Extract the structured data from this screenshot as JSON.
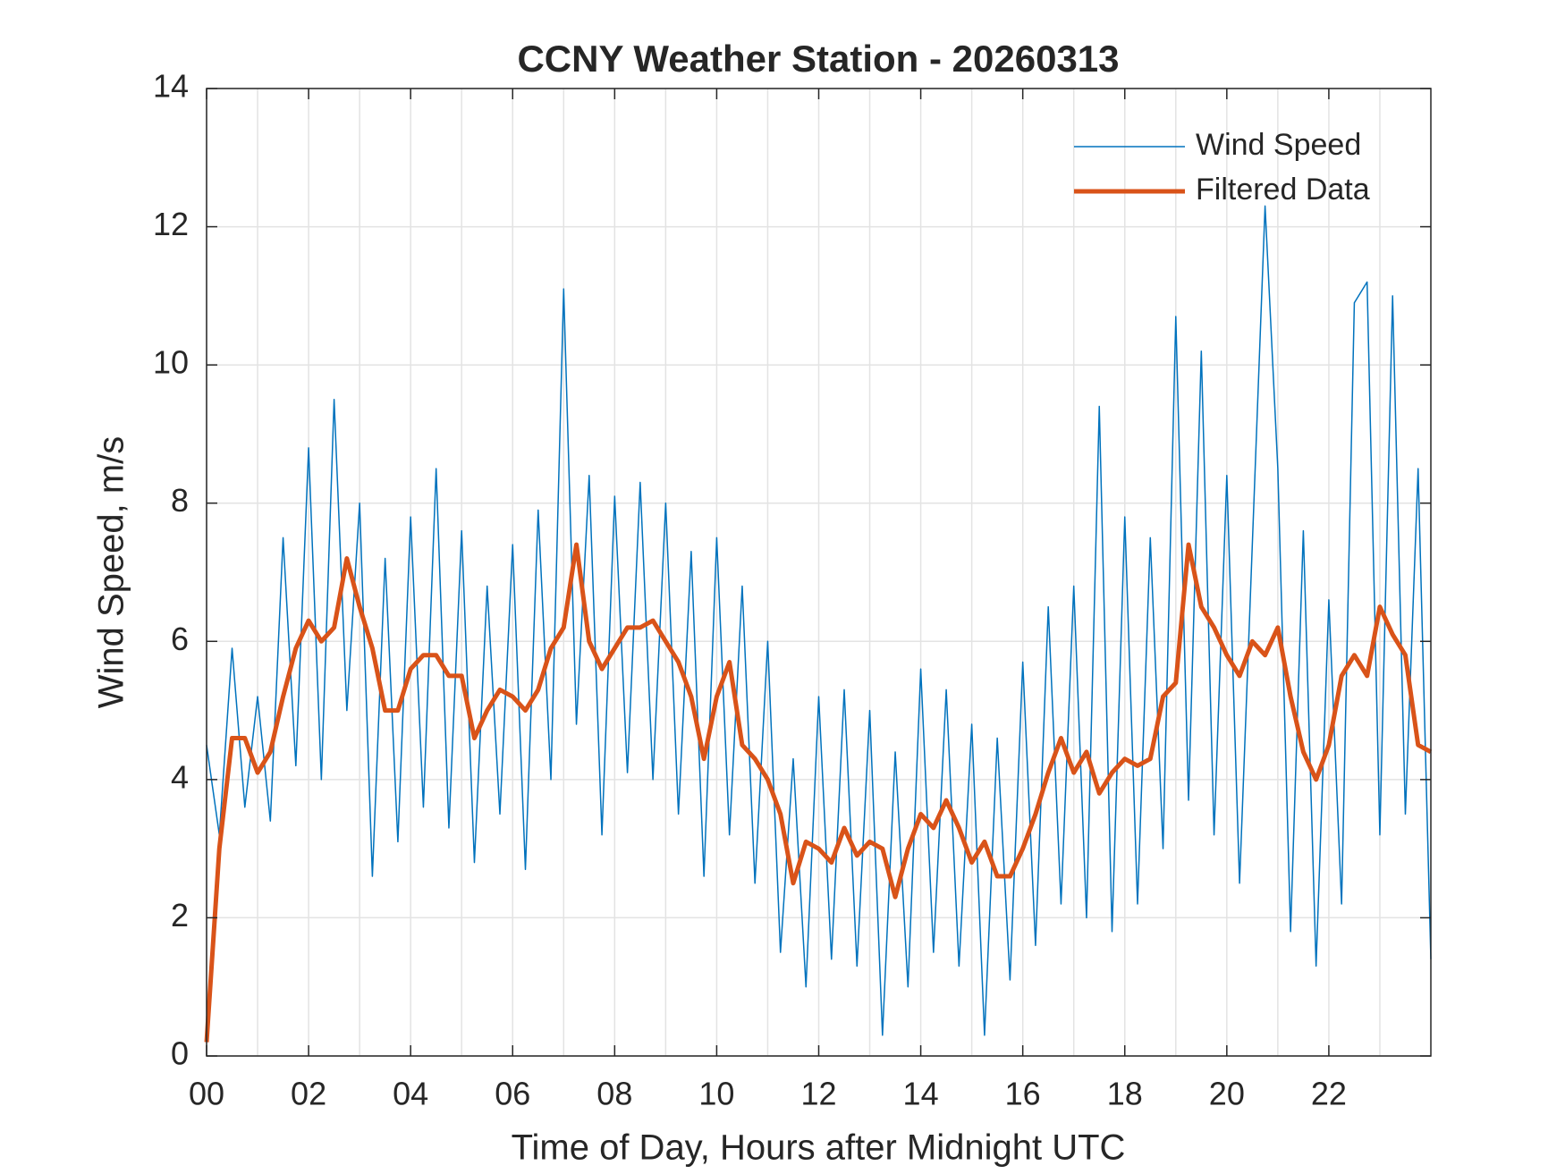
{
  "chart_data": {
    "type": "line",
    "title": "CCNY Weather Station - 20260313",
    "x_label": "Time of Day, Hours after Midnight UTC",
    "y_label": "Wind Speed, m/s",
    "x": [
      0,
      0.25,
      0.5,
      0.75,
      1,
      1.25,
      1.5,
      1.75,
      2,
      2.25,
      2.5,
      2.75,
      3,
      3.25,
      3.5,
      3.75,
      4,
      4.25,
      4.5,
      4.75,
      5,
      5.25,
      5.5,
      5.75,
      6,
      6.25,
      6.5,
      6.75,
      7,
      7.25,
      7.5,
      7.75,
      8,
      8.25,
      8.5,
      8.75,
      9,
      9.25,
      9.5,
      9.75,
      10,
      10.25,
      10.5,
      10.75,
      11,
      11.25,
      11.5,
      11.75,
      12,
      12.25,
      12.5,
      12.75,
      13,
      13.25,
      13.5,
      13.75,
      14,
      14.25,
      14.5,
      14.75,
      15,
      15.25,
      15.5,
      15.75,
      16,
      16.25,
      16.5,
      16.75,
      17,
      17.25,
      17.5,
      17.75,
      18,
      18.25,
      18.5,
      18.75,
      19,
      19.25,
      19.5,
      19.75,
      20,
      20.25,
      20.5,
      20.75,
      21,
      21.25,
      21.5,
      21.75,
      22,
      22.25,
      22.5,
      22.75,
      23,
      23.25,
      23.5,
      23.75,
      24
    ],
    "series": [
      {
        "name": "Wind Speed",
        "color": "#0072bd",
        "line_width": 1.5,
        "values": [
          4.5,
          3.2,
          5.9,
          3.6,
          5.2,
          3.4,
          7.5,
          4.2,
          8.8,
          4.0,
          9.5,
          5.0,
          8.0,
          2.6,
          7.2,
          3.1,
          7.8,
          3.6,
          8.5,
          3.3,
          7.6,
          2.8,
          6.8,
          3.5,
          7.4,
          2.7,
          7.9,
          4.0,
          11.1,
          4.8,
          8.4,
          3.2,
          8.1,
          4.1,
          8.3,
          4.0,
          8.0,
          3.5,
          7.3,
          2.6,
          7.5,
          3.2,
          6.8,
          2.5,
          6.0,
          1.5,
          4.3,
          1.0,
          5.2,
          1.4,
          5.3,
          1.3,
          5.0,
          0.3,
          4.4,
          1.0,
          5.6,
          1.5,
          5.3,
          1.3,
          4.8,
          0.3,
          4.6,
          1.1,
          5.7,
          1.6,
          6.5,
          2.2,
          6.8,
          2.0,
          9.4,
          1.8,
          7.8,
          2.2,
          7.5,
          3.0,
          10.7,
          3.7,
          10.2,
          3.2,
          8.4,
          2.5,
          7.4,
          12.3,
          8.5,
          1.8,
          7.6,
          1.3,
          6.6,
          2.2,
          10.9,
          11.2,
          3.2,
          11.0,
          3.5,
          8.5,
          1.4
        ]
      },
      {
        "name": "Filtered Data",
        "color": "#d95319",
        "line_width": 5,
        "values": [
          0.2,
          3.0,
          4.6,
          4.6,
          4.1,
          4.4,
          5.2,
          5.9,
          6.3,
          6.0,
          6.2,
          7.2,
          6.5,
          5.9,
          5.0,
          5.0,
          5.6,
          5.8,
          5.8,
          5.5,
          5.5,
          4.6,
          5.0,
          5.3,
          5.2,
          5.0,
          5.3,
          5.9,
          6.2,
          7.4,
          6.0,
          5.6,
          5.9,
          6.2,
          6.2,
          6.3,
          6.0,
          5.7,
          5.2,
          4.3,
          5.2,
          5.7,
          4.5,
          4.3,
          4.0,
          3.5,
          2.5,
          3.1,
          3.0,
          2.8,
          3.3,
          2.9,
          3.1,
          3.0,
          2.3,
          3.0,
          3.5,
          3.3,
          3.7,
          3.3,
          2.8,
          3.1,
          2.6,
          2.6,
          3.0,
          3.5,
          4.1,
          4.6,
          4.1,
          4.4,
          3.8,
          4.1,
          4.3,
          4.2,
          4.3,
          5.2,
          5.4,
          7.4,
          6.5,
          6.2,
          5.8,
          5.5,
          6.0,
          5.8,
          6.2,
          5.2,
          4.4,
          4.0,
          4.5,
          5.5,
          5.8,
          5.5,
          6.5,
          6.1,
          5.8,
          4.5,
          4.4
        ]
      }
    ],
    "xlim": [
      0,
      24
    ],
    "ylim": [
      0,
      14
    ],
    "xticks": [
      {
        "value": 0,
        "label": "00"
      },
      {
        "value": 2,
        "label": "02"
      },
      {
        "value": 4,
        "label": "04"
      },
      {
        "value": 6,
        "label": "06"
      },
      {
        "value": 8,
        "label": "08"
      },
      {
        "value": 10,
        "label": "10"
      },
      {
        "value": 12,
        "label": "12"
      },
      {
        "value": 14,
        "label": "14"
      },
      {
        "value": 16,
        "label": "16"
      },
      {
        "value": 18,
        "label": "18"
      },
      {
        "value": 20,
        "label": "20"
      },
      {
        "value": 22,
        "label": "22"
      }
    ],
    "x_minor_grid": [
      1,
      3,
      5,
      7,
      9,
      11,
      13,
      15,
      17,
      19,
      21,
      23
    ],
    "yticks": [
      0,
      2,
      4,
      6,
      8,
      10,
      12,
      14
    ],
    "grid": true,
    "legend": "top-right"
  }
}
